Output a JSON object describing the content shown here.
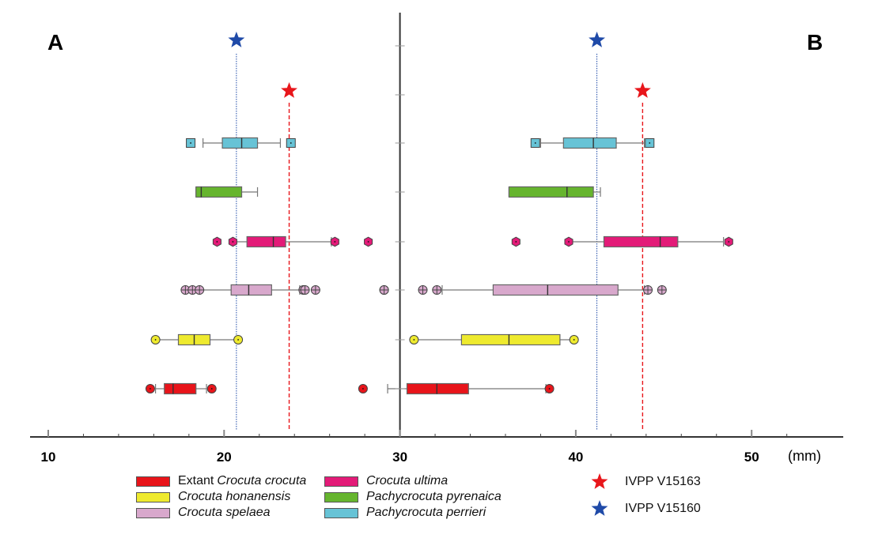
{
  "chart_data": {
    "type": "boxplot",
    "title": "",
    "xlabel": "(mm)",
    "ylabel": "",
    "xlim": [
      9.5,
      52.5
    ],
    "x_ticks_major": [
      10,
      20,
      30,
      40,
      50
    ],
    "x_tick_labels": [
      "10",
      "20",
      "30",
      "40",
      "50"
    ],
    "x_ticks_minor_step": 2,
    "grid": false,
    "legend_position": "bottom",
    "panels": [
      {
        "label": "A",
        "reference_lines": [
          {
            "specimen": "IVPP V15160",
            "value": 20.7,
            "color": "#1f4aa8",
            "style": "dotted"
          },
          {
            "specimen": "IVPP V15163",
            "value": 23.7,
            "color": "#e8161b",
            "style": "dashed"
          }
        ],
        "series": [
          {
            "name": "Pachycrocuta perrieri",
            "whisker_low": 18.8,
            "q1": 19.9,
            "median": 21.0,
            "q3": 21.9,
            "whisker_high": 23.2,
            "outliers": [
              18.1,
              23.8
            ],
            "marker": "square"
          },
          {
            "name": "Pachycrocuta pyrenaica",
            "whisker_low": 18.4,
            "q1": 18.4,
            "median": 18.7,
            "q3": 21.0,
            "whisker_high": 21.9,
            "outliers": [],
            "marker": "none"
          },
          {
            "name": "Crocuta ultima",
            "whisker_low": 20.5,
            "q1": 21.3,
            "median": 22.8,
            "q3": 23.5,
            "whisker_high": 26.1,
            "outliers": [
              19.6,
              20.5,
              26.3,
              28.2
            ],
            "marker": "hexagon"
          },
          {
            "name": "Crocuta spelaea",
            "whisker_low": 18.6,
            "q1": 20.4,
            "median": 21.4,
            "q3": 22.7,
            "whisker_high": 24.3,
            "outliers": [
              17.8,
              18.2,
              18.6,
              24.5,
              24.6,
              25.2,
              29.1
            ],
            "marker": "crosscircle"
          },
          {
            "name": "Crocuta honanensis",
            "whisker_low": 16.1,
            "q1": 17.4,
            "median": 18.3,
            "q3": 19.2,
            "whisker_high": 20.8,
            "outliers": [
              16.1,
              20.8
            ],
            "marker": "circle"
          },
          {
            "name": "Extant Crocuta crocuta",
            "whisker_low": 16.1,
            "q1": 16.6,
            "median": 17.1,
            "q3": 18.4,
            "whisker_high": 19.0,
            "outliers": [
              15.8,
              19.3
            ],
            "marker": "circle"
          }
        ]
      },
      {
        "label": "B",
        "reference_lines": [
          {
            "specimen": "IVPP V15160",
            "value": 41.2,
            "color": "#1f4aa8",
            "style": "dotted"
          },
          {
            "specimen": "IVPP V15163",
            "value": 43.8,
            "color": "#e8161b",
            "style": "dashed"
          }
        ],
        "series": [
          {
            "name": "Pachycrocuta perrieri",
            "whisker_low": 38.0,
            "q1": 39.3,
            "median": 41.0,
            "q3": 42.3,
            "whisker_high": 43.9,
            "outliers": [
              37.7,
              44.2
            ],
            "marker": "square"
          },
          {
            "name": "Pachycrocuta pyrenaica",
            "whisker_low": 36.2,
            "q1": 36.2,
            "median": 39.5,
            "q3": 41.0,
            "whisker_high": 41.4,
            "outliers": [],
            "marker": "none"
          },
          {
            "name": "Crocuta ultima",
            "whisker_low": 39.6,
            "q1": 41.6,
            "median": 44.8,
            "q3": 45.8,
            "whisker_high": 48.4,
            "outliers": [
              36.6,
              39.6,
              48.7
            ],
            "marker": "hexagon"
          },
          {
            "name": "Crocuta spelaea",
            "whisker_low": 32.4,
            "q1": 35.3,
            "median": 38.4,
            "q3": 42.4,
            "whisker_high": 43.9,
            "outliers": [
              29.1,
              31.3,
              32.1,
              44.1,
              44.9
            ],
            "marker": "crosscircle"
          },
          {
            "name": "Crocuta honanensis",
            "whisker_low": 30.8,
            "q1": 33.5,
            "median": 36.2,
            "q3": 39.1,
            "whisker_high": 39.9,
            "outliers": [
              30.8,
              39.9
            ],
            "marker": "circle"
          },
          {
            "name": "Extant Crocuta crocuta",
            "whisker_low": 29.3,
            "q1": 30.4,
            "median": 32.1,
            "q3": 33.9,
            "whisker_high": 38.3,
            "outliers": [
              27.9,
              38.5
            ],
            "marker": "circle"
          }
        ]
      }
    ],
    "colors": {
      "Extant Crocuta crocuta": "#e8141a",
      "Crocuta honanensis": "#eeea2e",
      "Crocuta spelaea": "#d8a8cc",
      "Crocuta ultima": "#e31b78",
      "Pachycrocuta pyrenaica": "#66b52e",
      "Pachycrocuta perrieri": "#67c3d6"
    }
  },
  "legend": {
    "species": [
      {
        "plain": "Extant ",
        "italic": "Crocuta crocuta",
        "color": "#e8141a"
      },
      {
        "plain": "",
        "italic": "Crocuta honanensis",
        "color": "#eeea2e"
      },
      {
        "plain": "",
        "italic": "Crocuta spelaea",
        "color": "#d8a8cc"
      },
      {
        "plain": "",
        "italic": "Crocuta ultima",
        "color": "#e31b78"
      },
      {
        "plain": "",
        "italic": "Pachycrocuta pyrenaica",
        "color": "#66b52e"
      },
      {
        "plain": "",
        "italic": "Pachycrocuta perrieri",
        "color": "#67c3d6"
      }
    ],
    "specimens": [
      {
        "label": "IVPP V15163",
        "color": "#e8161b",
        "icon": "star-icon"
      },
      {
        "label": "IVPP V15160",
        "color": "#1f4aa8",
        "icon": "star-icon"
      }
    ]
  }
}
